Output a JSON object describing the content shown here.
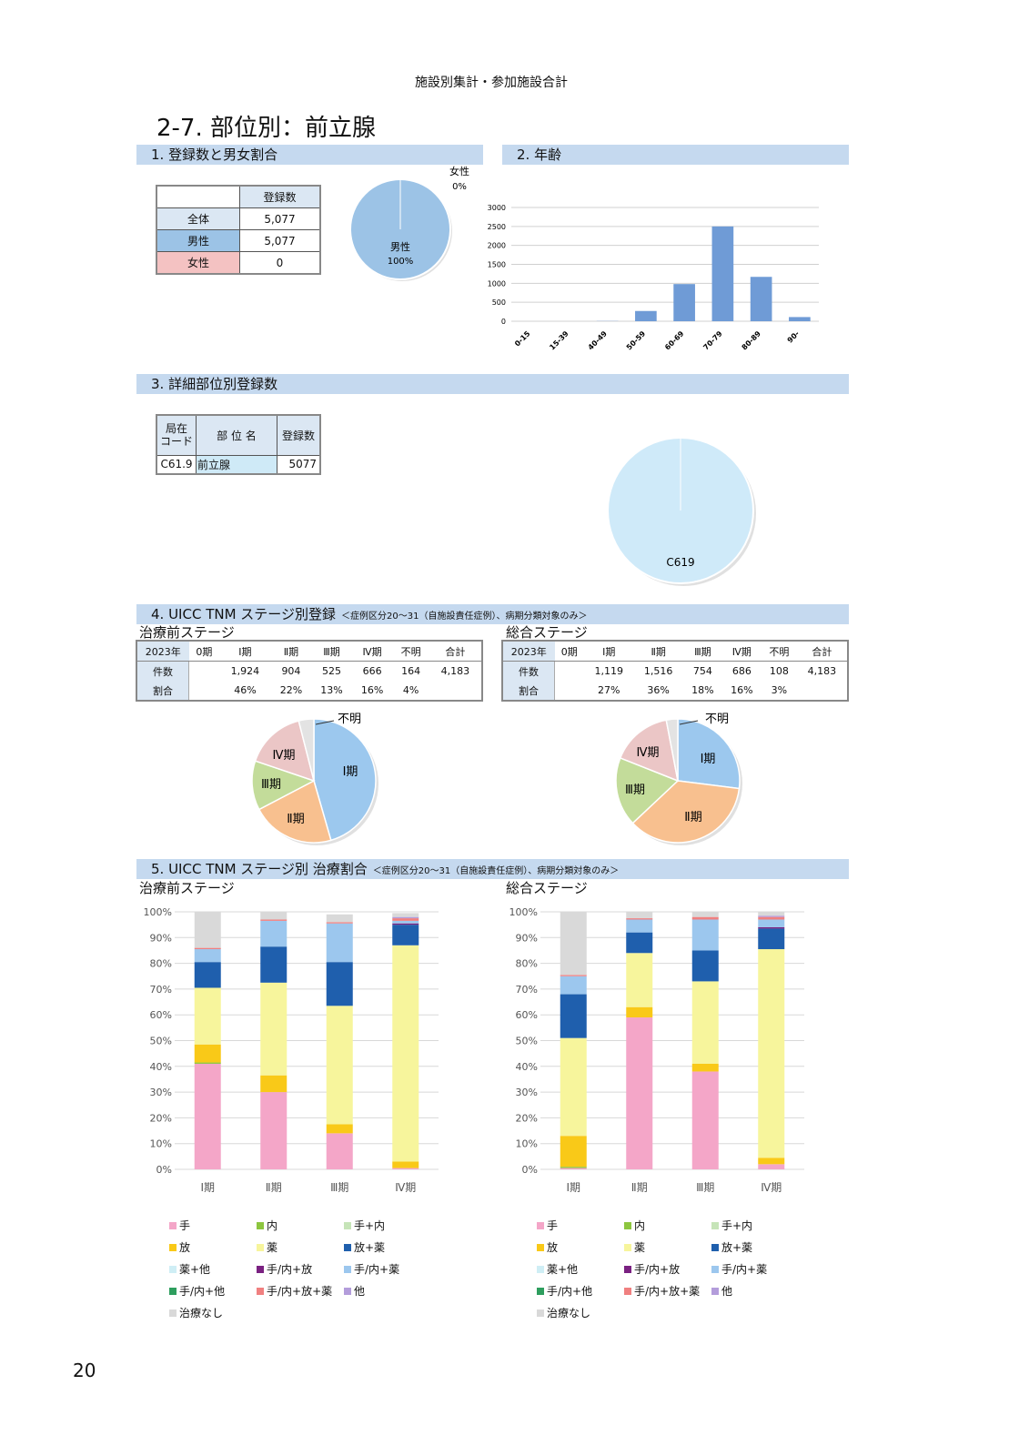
{
  "header": "施設別集計・参加施設合計",
  "page_title": "2-7.  部位別：前立腺",
  "page_number": "20",
  "sec1": {
    "title": "1.  登録数と男女割合",
    "col_header": "登録数",
    "rows": [
      {
        "label": "全体",
        "value": "5,077"
      },
      {
        "label": "男性",
        "value": "5,077"
      },
      {
        "label": "女性",
        "value": "0"
      }
    ],
    "pie_male_label": "男性",
    "pie_male_pct": "100%",
    "pie_female_label": "女性",
    "pie_female_pct": "0%"
  },
  "sec2": {
    "title": "2.  年齢"
  },
  "sec3": {
    "title": "3.  詳細部位別登録数",
    "h_code": "局在\nコード",
    "h_name": "部 位 名",
    "h_count": "登録数",
    "row": {
      "code": "C61.9",
      "name": "前立腺",
      "count": "5077"
    },
    "pie_label": "C619"
  },
  "sec4": {
    "title": "4.  UICC TNM  ステージ別登録",
    "note": "＜症例区分20～31（自施設責任症例）、病期分類対象のみ＞",
    "pre": {
      "label": "治療前ステージ",
      "head": [
        "2023年",
        "0期",
        "Ⅰ期",
        "Ⅱ期",
        "Ⅲ期",
        "Ⅳ期",
        "不明",
        "合計"
      ],
      "count": [
        "件数",
        "",
        "1,924",
        "904",
        "525",
        "666",
        "164",
        "4,183"
      ],
      "ratio": [
        "割合",
        "",
        "46%",
        "22%",
        "13%",
        "16%",
        "4%",
        ""
      ],
      "pie_labels": [
        "Ⅰ期",
        "Ⅱ期",
        "Ⅲ期",
        "Ⅳ期",
        "不明"
      ]
    },
    "total": {
      "label": "総合ステージ",
      "head": [
        "2023年",
        "0期",
        "Ⅰ期",
        "Ⅱ期",
        "Ⅲ期",
        "Ⅳ期",
        "不明",
        "合計"
      ],
      "count": [
        "件数",
        "",
        "1,119",
        "1,516",
        "754",
        "686",
        "108",
        "4,183"
      ],
      "ratio": [
        "割合",
        "",
        "27%",
        "36%",
        "18%",
        "16%",
        "3%",
        ""
      ],
      "pie_labels": [
        "Ⅰ期",
        "Ⅱ期",
        "Ⅲ期",
        "Ⅳ期",
        "不明"
      ]
    }
  },
  "sec5": {
    "title": "5.  UICC TNM  ステージ別  治療割合",
    "note": "＜症例区分20～31（自施設責任症例）、病期分類対象のみ＞",
    "pre_label": "治療前ステージ",
    "total_label": "総合ステージ"
  },
  "legend": [
    {
      "label": "手",
      "color": "#f4a6c8"
    },
    {
      "label": "内",
      "color": "#8dc63f"
    },
    {
      "label": "手+内",
      "color": "#c6e4b8"
    },
    {
      "label": "放",
      "color": "#f9c918"
    },
    {
      "label": "薬",
      "color": "#f7f59c"
    },
    {
      "label": "放+薬",
      "color": "#1f5fad"
    },
    {
      "label": "薬+他",
      "color": "#cfeef5"
    },
    {
      "label": "手/内+放",
      "color": "#7a2181"
    },
    {
      "label": "手/内+薬",
      "color": "#9cc7ee"
    },
    {
      "label": "手/内+他",
      "color": "#2e9e5e"
    },
    {
      "label": "手/内+放+薬",
      "color": "#f08080"
    },
    {
      "label": "他",
      "color": "#b39ddb"
    },
    {
      "label": "治療なし",
      "color": "#d9d9d9"
    }
  ],
  "chart_data": [
    {
      "type": "pie",
      "categories": [
        "男性",
        "女性"
      ],
      "values": [
        100,
        0
      ]
    },
    {
      "type": "bar",
      "categories": [
        "0-15",
        "15-39",
        "40-49",
        "50-59",
        "60-69",
        "70-79",
        "80-89",
        "90-"
      ],
      "values": [
        0,
        0,
        5,
        270,
        980,
        2500,
        1170,
        110
      ],
      "ylim": [
        0,
        3000
      ],
      "yticks": [
        0,
        500,
        1000,
        1500,
        2000,
        2500,
        3000
      ]
    },
    {
      "type": "pie",
      "categories": [
        "C619"
      ],
      "values": [
        100
      ]
    },
    {
      "type": "pie",
      "categories": [
        "Ⅰ期",
        "Ⅱ期",
        "Ⅲ期",
        "Ⅳ期",
        "不明"
      ],
      "values": [
        46,
        22,
        13,
        16,
        4
      ]
    },
    {
      "type": "pie",
      "categories": [
        "Ⅰ期",
        "Ⅱ期",
        "Ⅲ期",
        "Ⅳ期",
        "不明"
      ],
      "values": [
        27,
        36,
        18,
        16,
        3
      ]
    },
    {
      "type": "bar",
      "stacked": true,
      "categories": [
        "Ⅰ期",
        "Ⅱ期",
        "Ⅲ期",
        "Ⅳ期"
      ],
      "ylim": [
        0,
        100
      ],
      "yticks": [
        "0%",
        "10%",
        "20%",
        "30%",
        "40%",
        "50%",
        "60%",
        "70%",
        "80%",
        "90%",
        "100%"
      ],
      "series": [
        {
          "name": "手",
          "values": [
            41,
            30,
            14,
            0.5
          ]
        },
        {
          "name": "内",
          "values": [
            0.5,
            0,
            0,
            0
          ]
        },
        {
          "name": "手+内",
          "values": [
            0,
            0,
            0,
            0
          ]
        },
        {
          "name": "放",
          "values": [
            7,
            6.5,
            3.5,
            2.5
          ]
        },
        {
          "name": "薬",
          "values": [
            22,
            36,
            46,
            84
          ]
        },
        {
          "name": "放+薬",
          "values": [
            10,
            14,
            17,
            8
          ]
        },
        {
          "name": "薬+他",
          "values": [
            0,
            0,
            0,
            0
          ]
        },
        {
          "name": "手/内+放",
          "values": [
            0,
            0,
            0,
            0.5
          ]
        },
        {
          "name": "手/内+薬",
          "values": [
            5,
            10,
            15,
            1
          ]
        },
        {
          "name": "手/内+他",
          "values": [
            0,
            0,
            0,
            0
          ]
        },
        {
          "name": "手/内+放+薬",
          "values": [
            0.5,
            0.5,
            0.5,
            1
          ]
        },
        {
          "name": "他",
          "values": [
            0,
            0,
            0,
            0.5
          ]
        },
        {
          "name": "治療なし",
          "values": [
            14,
            3,
            3,
            1.5
          ]
        }
      ]
    },
    {
      "type": "bar",
      "stacked": true,
      "categories": [
        "Ⅰ期",
        "Ⅱ期",
        "Ⅲ期",
        "Ⅳ期"
      ],
      "ylim": [
        0,
        100
      ],
      "yticks": [
        "0%",
        "10%",
        "20%",
        "30%",
        "40%",
        "50%",
        "60%",
        "70%",
        "80%",
        "90%",
        "100%"
      ],
      "series": [
        {
          "name": "手",
          "values": [
            0.5,
            59,
            38,
            2
          ]
        },
        {
          "name": "内",
          "values": [
            0.5,
            0,
            0,
            0
          ]
        },
        {
          "name": "手+内",
          "values": [
            0,
            0,
            0,
            0
          ]
        },
        {
          "name": "放",
          "values": [
            12,
            4,
            3,
            2.5
          ]
        },
        {
          "name": "薬",
          "values": [
            38,
            21,
            32,
            81
          ]
        },
        {
          "name": "放+薬",
          "values": [
            17,
            8,
            12,
            8
          ]
        },
        {
          "name": "薬+他",
          "values": [
            0,
            0,
            0,
            0
          ]
        },
        {
          "name": "手/内+放",
          "values": [
            0,
            0,
            0,
            0.5
          ]
        },
        {
          "name": "手/内+薬",
          "values": [
            7,
            5,
            12,
            3
          ]
        },
        {
          "name": "手/内+他",
          "values": [
            0,
            0,
            0,
            0
          ]
        },
        {
          "name": "手/内+放+薬",
          "values": [
            0.5,
            0.5,
            1,
            1
          ]
        },
        {
          "name": "他",
          "values": [
            0,
            0,
            0,
            0.5
          ]
        },
        {
          "name": "治療なし",
          "values": [
            24.5,
            2.5,
            2,
            1.5
          ]
        }
      ]
    }
  ]
}
